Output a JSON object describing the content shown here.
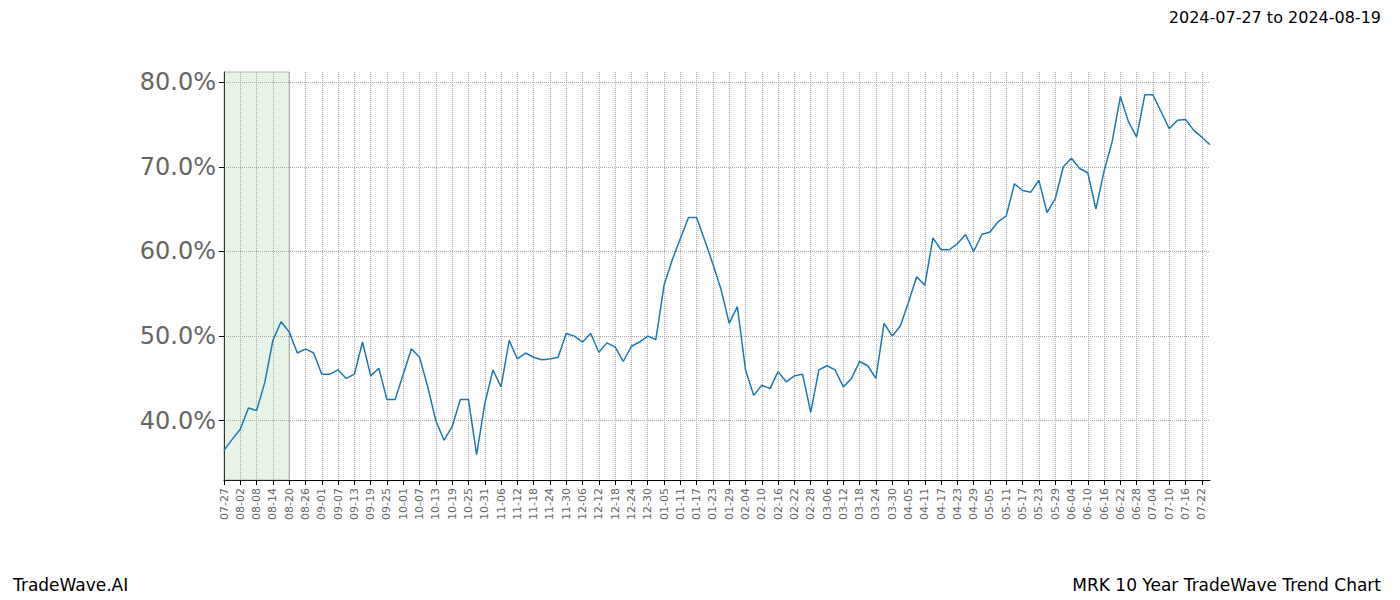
{
  "chart_data": {
    "type": "line",
    "title": "2024-07-27 to 2024-08-19",
    "annotations": [
      "TradeWave.AI",
      "MRK 10 Year TradeWave Trend Chart"
    ],
    "highlight": [
      "07-27",
      "08-20"
    ],
    "categories": [
      "07-27",
      null,
      "08-02",
      null,
      "08-08",
      null,
      "08-14",
      null,
      "08-20",
      null,
      "08-26",
      null,
      "09-01",
      null,
      "09-07",
      null,
      "09-13",
      null,
      "09-19",
      null,
      "09-25",
      null,
      "10-01",
      null,
      "10-07",
      null,
      "10-13",
      null,
      "10-19",
      null,
      "10-25",
      null,
      "10-31",
      null,
      "11-06",
      null,
      "11-12",
      null,
      "11-18",
      null,
      "11-24",
      null,
      "11-30",
      null,
      "12-06",
      null,
      "12-12",
      null,
      "12-18",
      null,
      "12-24",
      null,
      "12-30",
      null,
      "01-05",
      null,
      "01-11",
      null,
      "01-17",
      null,
      "01-23",
      null,
      "01-29",
      null,
      "02-04",
      null,
      "02-10",
      null,
      "02-16",
      null,
      "02-22",
      null,
      "02-28",
      null,
      "03-06",
      null,
      "03-12",
      null,
      "03-18",
      null,
      "03-24",
      null,
      "03-30",
      null,
      "04-05",
      null,
      "04-11",
      null,
      "04-17",
      null,
      "04-23",
      null,
      "04-29",
      null,
      "05-05",
      null,
      "05-11",
      null,
      "05-17",
      null,
      "05-23",
      null,
      "05-29",
      null,
      "06-04",
      null,
      "06-10",
      null,
      "06-16",
      null,
      "06-22",
      null,
      "06-28",
      null,
      "07-04",
      null,
      "07-10",
      null,
      "07-16",
      null,
      "07-22",
      null
    ],
    "values": [
      36.5,
      37.8,
      39,
      41.5,
      41.2,
      44.5,
      49.5,
      51.7,
      50.5,
      48,
      48.5,
      48,
      45.5,
      45.5,
      46,
      45,
      45.5,
      49.3,
      45.3,
      46.2,
      42.5,
      42.5,
      45.5,
      48.5,
      47.5,
      44,
      40,
      37.7,
      39.3,
      42.5,
      42.5,
      36,
      42,
      46,
      44,
      49.5,
      47.3,
      48,
      47.5,
      47.2,
      47.3,
      47.5,
      50.3,
      50,
      49.3,
      50.3,
      48.1,
      49.2,
      48.7,
      47,
      48.8,
      49.3,
      50,
      49.6,
      56,
      59,
      61.5,
      64,
      64,
      61.3,
      58.5,
      55.5,
      51.5,
      53.5,
      46,
      43,
      44.2,
      43.8,
      45.8,
      44.6,
      45.3,
      45.5,
      41,
      46,
      46.5,
      46,
      44,
      45,
      47,
      46.5,
      45,
      51.5,
      50,
      51.2,
      54,
      57,
      56,
      61.6,
      60.2,
      60.2,
      60.9,
      62,
      60,
      62,
      62.3,
      63.5,
      64.2,
      68,
      67.2,
      67,
      68.4,
      64.6,
      66.2,
      70,
      71,
      69.8,
      69.3,
      65,
      69.5,
      73,
      78.3,
      75.3,
      73.5,
      78.5,
      78.5,
      76.5,
      74.5,
      75.5,
      75.6,
      74.3,
      73.5,
      72.6
    ],
    "color": "#1f77b4",
    "ylim": [
      33,
      81.2
    ],
    "yticks": [
      {
        "value": 40,
        "label": "40.0%"
      },
      {
        "value": 50,
        "label": "50.0%"
      },
      {
        "value": 60,
        "label": "60.0%"
      },
      {
        "value": 70,
        "label": "70.0%"
      },
      {
        "value": 80,
        "label": "80.0%"
      }
    ],
    "grid": true
  }
}
